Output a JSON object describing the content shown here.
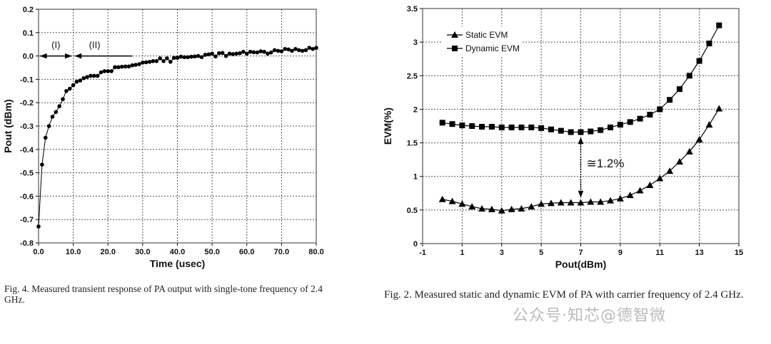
{
  "chart_data": [
    {
      "type": "scatter",
      "xlabel": "Time (usec)",
      "ylabel": "Pout (dBm)",
      "xlim": [
        0,
        80
      ],
      "ylim": [
        -0.8,
        0.2
      ],
      "xticks": [
        "0.0",
        "10.0",
        "20.0",
        "30.0",
        "40.0",
        "50.0",
        "60.0",
        "70.0",
        "80.0"
      ],
      "yticks": [
        "0.2",
        "0.1",
        "0.0",
        "-0.1",
        "-0.2",
        "-0.3",
        "-0.4",
        "-0.5",
        "-0.6",
        "-0.7",
        "-0.8"
      ],
      "grid": true,
      "annotations": [
        {
          "text": "(I)",
          "from": 0,
          "to": 10,
          "y": 0.0
        },
        {
          "text": "(II)",
          "from": 10,
          "to": 27,
          "y": 0.0
        }
      ],
      "x": [
        0,
        1,
        2,
        3,
        4,
        5,
        6,
        7,
        8,
        9,
        10,
        11,
        12,
        13,
        14,
        15,
        16,
        17,
        18,
        19,
        20,
        21,
        22,
        23,
        24,
        25,
        26,
        27,
        28,
        29,
        30,
        31,
        32,
        33,
        34,
        35,
        36,
        37,
        38,
        39,
        40,
        41,
        42,
        43,
        44,
        45,
        46,
        47,
        48,
        49,
        50,
        51,
        52,
        53,
        54,
        55,
        56,
        57,
        58,
        59,
        60,
        61,
        62,
        63,
        64,
        65,
        66,
        67,
        68,
        69,
        70,
        71,
        72,
        73,
        74,
        75,
        76,
        77,
        78,
        79,
        80
      ],
      "y": [
        -0.73,
        -0.465,
        -0.35,
        -0.3,
        -0.26,
        -0.24,
        -0.215,
        -0.185,
        -0.15,
        -0.14,
        -0.125,
        -0.11,
        -0.105,
        -0.095,
        -0.09,
        -0.085,
        -0.085,
        -0.085,
        -0.07,
        -0.065,
        -0.065,
        -0.065,
        -0.048,
        -0.048,
        -0.046,
        -0.045,
        -0.045,
        -0.04,
        -0.038,
        -0.035,
        -0.028,
        -0.027,
        -0.025,
        -0.022,
        -0.022,
        -0.01,
        -0.022,
        -0.01,
        -0.025,
        -0.008,
        -0.008,
        -0.003,
        -0.005,
        -0.005,
        -0.003,
        -0.002,
        0.0,
        -0.005,
        0.005,
        0.007,
        0.01,
        -0.002,
        0.012,
        0.013,
        0.0,
        0.01,
        0.008,
        0.01,
        0.012,
        0.018,
        0.01,
        0.018,
        0.016,
        0.015,
        0.02,
        0.018,
        0.01,
        0.015,
        0.025,
        0.022,
        0.02,
        0.03,
        0.028,
        0.022,
        0.03,
        0.025,
        0.022,
        0.025,
        0.035,
        0.03,
        0.035
      ]
    },
    {
      "type": "line",
      "xlabel": "Pout(dBm)",
      "ylabel": "EVM(%)",
      "xlim": [
        -1,
        15
      ],
      "ylim": [
        0,
        3.5
      ],
      "xticks": [
        "-1",
        "1",
        "3",
        "5",
        "7",
        "9",
        "11",
        "13",
        "15"
      ],
      "yticks": [
        "3.5",
        "3",
        "2.5",
        "2",
        "1.5",
        "1",
        "0.5",
        "0"
      ],
      "grid": true,
      "legend": "top-left",
      "annotation": {
        "text": "≅1.2%",
        "x": 7
      },
      "x": [
        0,
        0.5,
        1,
        1.5,
        2,
        2.5,
        3,
        3.5,
        4,
        4.5,
        5,
        5.5,
        6,
        6.5,
        7,
        7.5,
        8,
        8.5,
        9,
        9.5,
        10,
        10.5,
        11,
        11.5,
        12,
        12.5,
        13,
        13.5,
        14
      ],
      "series": [
        {
          "name": "Static EVM",
          "marker": "triangle",
          "values": [
            0.66,
            0.63,
            0.59,
            0.55,
            0.52,
            0.51,
            0.49,
            0.51,
            0.52,
            0.55,
            0.59,
            0.6,
            0.61,
            0.61,
            0.61,
            0.62,
            0.62,
            0.64,
            0.67,
            0.72,
            0.79,
            0.87,
            0.97,
            1.08,
            1.22,
            1.37,
            1.55,
            1.77,
            2.01
          ]
        },
        {
          "name": "Dynamic EVM",
          "marker": "square",
          "values": [
            1.8,
            1.78,
            1.76,
            1.75,
            1.74,
            1.74,
            1.73,
            1.73,
            1.73,
            1.73,
            1.72,
            1.7,
            1.68,
            1.66,
            1.66,
            1.67,
            1.69,
            1.73,
            1.77,
            1.81,
            1.86,
            1.92,
            2.0,
            2.14,
            2.3,
            2.5,
            2.72,
            2.98,
            3.25
          ]
        }
      ]
    }
  ],
  "captions": {
    "left": "Fig. 4.  Measured transient response of PA output with single-tone frequency of 2.4 GHz.",
    "right": "Fig. 2.  Measured static and dynamic EVM of PA with carrier frequency of 2.4 GHz."
  },
  "watermark": "公众号·知芯@德智微"
}
